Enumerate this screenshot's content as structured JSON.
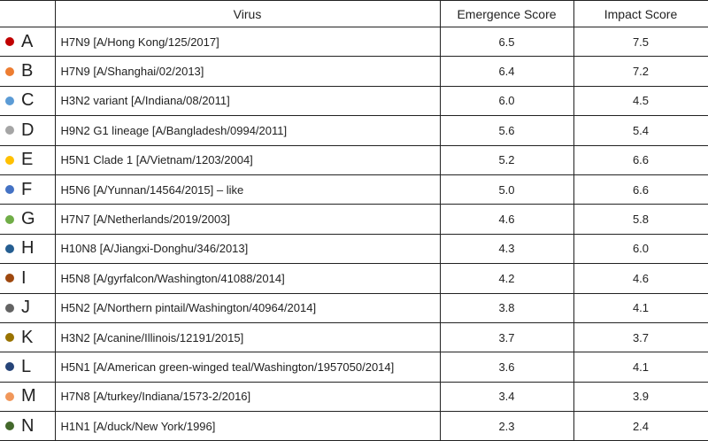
{
  "table": {
    "header": {
      "virus": "Virus",
      "emergence": "Emergence Score",
      "impact": "Impact Score"
    },
    "rows": [
      {
        "id": "A",
        "color": "#c00000",
        "virus": "H7N9 [A/Hong Kong/125/2017]",
        "emergence": "6.5",
        "impact": "7.5"
      },
      {
        "id": "B",
        "color": "#ed7d31",
        "virus": "H7N9 [A/Shanghai/02/2013]",
        "emergence": "6.4",
        "impact": "7.2"
      },
      {
        "id": "C",
        "color": "#5b9bd5",
        "virus": "H3N2 variant [A/Indiana/08/2011]",
        "emergence": "6.0",
        "impact": "4.5"
      },
      {
        "id": "D",
        "color": "#a5a5a5",
        "virus": "H9N2 G1 lineage [A/Bangladesh/0994/2011]",
        "emergence": "5.6",
        "impact": "5.4"
      },
      {
        "id": "E",
        "color": "#ffc000",
        "virus": "H5N1 Clade 1 [A/Vietnam/1203/2004]",
        "emergence": "5.2",
        "impact": "6.6"
      },
      {
        "id": "F",
        "color": "#4472c4",
        "virus": "H5N6 [A/Yunnan/14564/2015] – like",
        "emergence": "5.0",
        "impact": "6.6"
      },
      {
        "id": "G",
        "color": "#70ad47",
        "virus": "H7N7 [A/Netherlands/2019/2003]",
        "emergence": "4.6",
        "impact": "5.8"
      },
      {
        "id": "H",
        "color": "#255e91",
        "virus": "H10N8 [A/Jiangxi-Donghu/346/2013]",
        "emergence": "4.3",
        "impact": "6.0"
      },
      {
        "id": "I",
        "color": "#9e480e",
        "virus": "H5N8 [A/gyrfalcon/Washington/41088/2014]",
        "emergence": "4.2",
        "impact": "4.6"
      },
      {
        "id": "J",
        "color": "#636363",
        "virus": "H5N2 [A/Northern pintail/Washington/40964/2014]",
        "emergence": "3.8",
        "impact": "4.1"
      },
      {
        "id": "K",
        "color": "#997300",
        "virus": "H3N2 [A/canine/Illinois/12191/2015]",
        "emergence": "3.7",
        "impact": "3.7"
      },
      {
        "id": "L",
        "color": "#264478",
        "virus": "H5N1 [A/American green-winged teal/Washington/1957050/2014]",
        "emergence": "3.6",
        "impact": "4.1"
      },
      {
        "id": "M",
        "color": "#f1975a",
        "virus": "H7N8 [A/turkey/Indiana/1573-2/2016]",
        "emergence": "3.4",
        "impact": "3.9"
      },
      {
        "id": "N",
        "color": "#43682b",
        "virus": "H1N1 [A/duck/New York/1996]",
        "emergence": "2.3",
        "impact": "2.4"
      }
    ]
  }
}
